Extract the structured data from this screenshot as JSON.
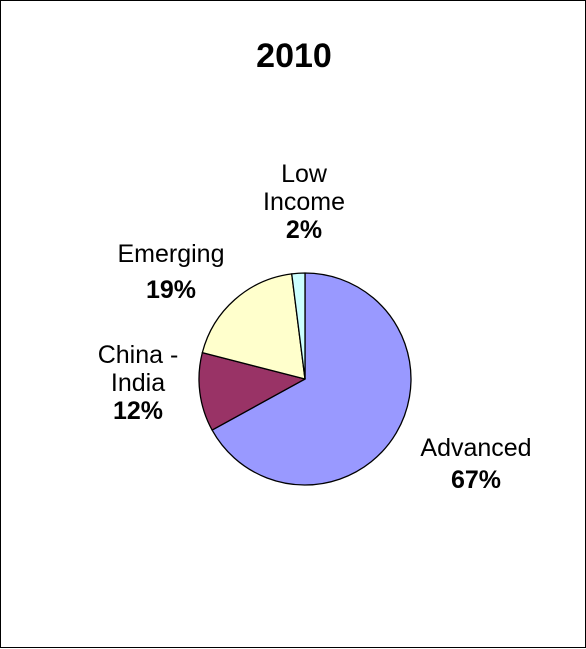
{
  "chart_data": {
    "type": "pie",
    "title": "2010",
    "slices": [
      {
        "name": "Advanced",
        "name_lines": [
          "Advanced"
        ],
        "value": 67,
        "value_label": "67%",
        "color": "#9999ff"
      },
      {
        "name": "China - India",
        "name_lines": [
          "China -",
          "India"
        ],
        "value": 12,
        "value_label": "12%",
        "color": "#993366"
      },
      {
        "name": "Emerging",
        "name_lines": [
          "Emerging"
        ],
        "value": 19,
        "value_label": "19%",
        "color": "#ffffcc"
      },
      {
        "name": "Low Income",
        "name_lines": [
          "Low",
          "Income"
        ],
        "value": 2,
        "value_label": "2%",
        "color": "#ccffff"
      }
    ],
    "start_position": "12 o'clock",
    "direction": "clockwise",
    "legend": "none",
    "outline_color": "#000000"
  }
}
